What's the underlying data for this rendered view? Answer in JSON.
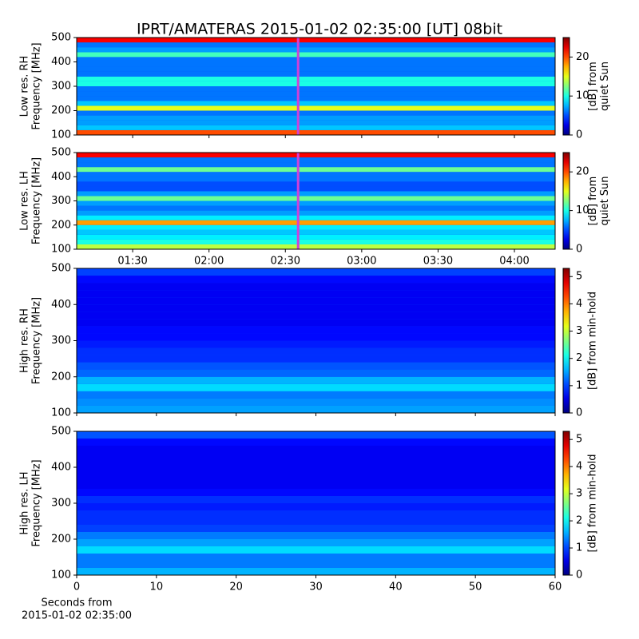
{
  "chart_data": [
    {
      "type": "heatmap",
      "title": "IPRT/AMATERAS 2015-01-02 02:35:00 [UT]   08bit",
      "ylabel": [
        "Low res. RH",
        "Frequency [MHz]"
      ],
      "xlim": [
        68,
        256
      ],
      "xticks": [
        {
          "value": 90,
          "label": "01:30"
        },
        {
          "value": 120,
          "label": "02:00"
        },
        {
          "value": 150,
          "label": "02:30"
        },
        {
          "value": 180,
          "label": "03:00"
        },
        {
          "value": 210,
          "label": "03:30"
        },
        {
          "value": 240,
          "label": "04:00"
        }
      ],
      "xticklabels_visible": false,
      "ylim": [
        100,
        500
      ],
      "yticks": [
        100,
        200,
        300,
        400,
        500
      ],
      "marker_x": 155,
      "marker_color": "#d040d8",
      "y": [
        110,
        130,
        150,
        170,
        190,
        210,
        230,
        250,
        270,
        290,
        310,
        330,
        350,
        370,
        390,
        410,
        430,
        450,
        470,
        490
      ],
      "values": [
        20,
        8,
        7,
        7,
        6,
        15,
        8,
        6,
        6,
        6,
        10,
        10,
        6,
        6,
        6,
        6,
        11,
        7,
        6,
        22
      ],
      "zlim": [
        0,
        25
      ],
      "zticks": [
        0,
        10,
        20
      ],
      "zlabel": [
        "[dB] from",
        "quiet Sun"
      ]
    },
    {
      "type": "heatmap",
      "ylabel": [
        "Low res. LH",
        "Frequency [MHz]"
      ],
      "xlim": [
        68,
        256
      ],
      "xticks": [
        {
          "value": 90,
          "label": "01:30"
        },
        {
          "value": 120,
          "label": "02:00"
        },
        {
          "value": 150,
          "label": "02:30"
        },
        {
          "value": 180,
          "label": "03:00"
        },
        {
          "value": 210,
          "label": "03:30"
        },
        {
          "value": 240,
          "label": "04:00"
        }
      ],
      "xticklabels_visible": true,
      "ylim": [
        100,
        500
      ],
      "yticks": [
        100,
        200,
        300,
        400,
        500
      ],
      "marker_x": 155,
      "marker_color": "#d040d8",
      "y": [
        110,
        130,
        150,
        170,
        190,
        210,
        230,
        250,
        270,
        290,
        310,
        330,
        350,
        370,
        390,
        410,
        430,
        450,
        470,
        490
      ],
      "values": [
        14,
        10,
        9,
        8,
        9,
        18,
        9,
        7,
        6,
        7,
        12,
        7,
        5,
        5,
        6,
        6,
        12,
        6,
        6,
        22
      ],
      "zlim": [
        0,
        25
      ],
      "zticks": [
        0,
        10,
        20
      ],
      "zlabel": [
        "[dB] from",
        "quiet Sun"
      ]
    },
    {
      "type": "heatmap",
      "ylabel": [
        "High res. RH",
        "Frequency [MHz]"
      ],
      "xlim": [
        0,
        60
      ],
      "xticks": [
        0,
        10,
        20,
        30,
        40,
        50,
        60
      ],
      "xticklabels_visible": false,
      "ylim": [
        100,
        500
      ],
      "yticks": [
        100,
        200,
        300,
        400,
        500
      ],
      "y": [
        110,
        130,
        150,
        170,
        190,
        210,
        230,
        250,
        270,
        290,
        310,
        330,
        350,
        370,
        390,
        410,
        430,
        450,
        470,
        490
      ],
      "values": [
        1.5,
        1.4,
        1.3,
        1.8,
        1.6,
        1.2,
        1.1,
        0.9,
        0.9,
        0.8,
        0.7,
        0.7,
        0.6,
        0.6,
        0.6,
        0.6,
        0.6,
        0.6,
        0.7,
        1.0
      ],
      "zlim": [
        0,
        5.3
      ],
      "zticks": [
        0,
        1,
        2,
        3,
        4,
        5
      ],
      "zlabel": [
        "[dB] from min-hold"
      ]
    },
    {
      "type": "heatmap",
      "ylabel": [
        "High res. LH",
        "Frequency [MHz]"
      ],
      "xlim": [
        0,
        60
      ],
      "xticks": [
        0,
        10,
        20,
        30,
        40,
        50,
        60
      ],
      "xticklabels_visible": true,
      "xlabel": [
        "Seconds from",
        "2015-01-02 02:35:00"
      ],
      "ylim": [
        100,
        500
      ],
      "yticks": [
        100,
        200,
        300,
        400,
        500
      ],
      "y": [
        110,
        130,
        150,
        170,
        190,
        210,
        230,
        250,
        270,
        290,
        310,
        330,
        350,
        370,
        390,
        410,
        430,
        450,
        470,
        490
      ],
      "values": [
        1.6,
        1.3,
        1.3,
        1.8,
        1.5,
        1.3,
        1.0,
        0.9,
        0.9,
        0.8,
        0.9,
        0.7,
        0.6,
        0.6,
        0.6,
        0.6,
        0.6,
        0.6,
        0.7,
        1.1
      ],
      "zlim": [
        0,
        5.3
      ],
      "zticks": [
        0,
        1,
        2,
        3,
        4,
        5
      ],
      "zlabel": [
        "[dB] from min-hold"
      ]
    }
  ]
}
